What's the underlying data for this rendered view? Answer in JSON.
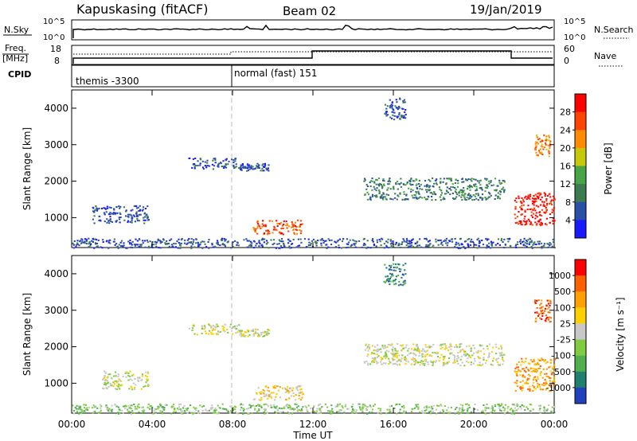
{
  "header": {
    "station": "Kapuskasing (fitACF)",
    "beam": "Beam 02",
    "date": "19/Jan/2019"
  },
  "noise_panel": {
    "left_label": "N.Sky",
    "left_ticks": [
      "10^5",
      "10^0"
    ],
    "right_label": "N.Search",
    "right_ticks": [
      "10^5",
      "10^0"
    ]
  },
  "freq_panel": {
    "left_label_1": "Freq.",
    "left_label_2": "[MHz]",
    "left_ticks": [
      "18",
      "8"
    ],
    "right_label": "Nave",
    "right_ticks": [
      "60",
      "0"
    ]
  },
  "cpid_panel": {
    "label": "CPID",
    "modes": [
      {
        "text": "themis -3300",
        "start_hour": 0
      },
      {
        "text": "normal (fast) 151",
        "start_hour": 8
      }
    ]
  },
  "x_axis": {
    "label": "Time UT",
    "ticks": [
      "00:00",
      "04:00",
      "08:00",
      "12:00",
      "16:00",
      "20:00",
      "00:00"
    ],
    "range_hours": [
      0,
      24
    ]
  },
  "chart_data": [
    {
      "type": "heatmap",
      "name": "power",
      "ylabel": "Slant Range [km]",
      "y_ticks": [
        "1000",
        "2000",
        "3000",
        "4000"
      ],
      "ylim": [
        180,
        4500
      ],
      "colorbar_label": "Power [dB]",
      "colorbar_ticks": [
        "4",
        "8",
        "12",
        "16",
        "20",
        "24",
        "28"
      ],
      "colors": [
        "#1a1aff",
        "#2a4fa8",
        "#3c7a50",
        "#47a447",
        "#c8c80a",
        "#ff8c00",
        "#ff4400",
        "#ff0000"
      ],
      "regions": [
        {
          "t0": 1.0,
          "t1": 3.8,
          "r0": 850,
          "r1": 1350,
          "level": 1
        },
        {
          "t0": 5.8,
          "t1": 8.3,
          "r0": 2350,
          "r1": 2650,
          "level": 1
        },
        {
          "t0": 8.3,
          "t1": 9.8,
          "r0": 2300,
          "r1": 2500,
          "level": 1
        },
        {
          "t0": 9.0,
          "t1": 11.5,
          "r0": 550,
          "r1": 950,
          "level": 6
        },
        {
          "t0": 14.5,
          "t1": 21.5,
          "r0": 1500,
          "r1": 2100,
          "level": 2
        },
        {
          "t0": 15.5,
          "t1": 16.6,
          "r0": 3700,
          "r1": 4300,
          "level": 1
        },
        {
          "t0": 22.0,
          "t1": 24.0,
          "r0": 800,
          "r1": 1700,
          "level": 7
        },
        {
          "t0": 23.0,
          "t1": 23.8,
          "r0": 2700,
          "r1": 3300,
          "level": 5
        },
        {
          "t0": 0.0,
          "t1": 24.0,
          "r0": 180,
          "r1": 450,
          "level": 1
        }
      ]
    },
    {
      "type": "heatmap",
      "name": "velocity",
      "ylabel": "Slant Range [km]",
      "y_ticks": [
        "1000",
        "2000",
        "3000",
        "4000"
      ],
      "ylim": [
        180,
        4500
      ],
      "colorbar_label": "Velocity [m s⁻¹]",
      "colorbar_ticks": [
        "1000",
        "500",
        "100",
        "25",
        "-25",
        "-100",
        "-500",
        "-1000"
      ],
      "colors": [
        "#2040c0",
        "#208070",
        "#50b050",
        "#80cc40",
        "#c8c8c8",
        "#ffd000",
        "#ffa000",
        "#ff6000",
        "#ff0000"
      ],
      "regions": [
        {
          "t0": 1.5,
          "t1": 3.8,
          "r0": 850,
          "r1": 1350,
          "level": 4
        },
        {
          "t0": 5.8,
          "t1": 8.3,
          "r0": 2350,
          "r1": 2650,
          "level": 4
        },
        {
          "t0": 8.3,
          "t1": 9.8,
          "r0": 2300,
          "r1": 2500,
          "level": 4
        },
        {
          "t0": 9.0,
          "t1": 11.5,
          "r0": 550,
          "r1": 950,
          "level": 5
        },
        {
          "t0": 14.5,
          "t1": 21.5,
          "r0": 1500,
          "r1": 2100,
          "level": 4
        },
        {
          "t0": 15.5,
          "t1": 16.6,
          "r0": 3700,
          "r1": 4300,
          "level": 1
        },
        {
          "t0": 22.0,
          "t1": 24.0,
          "r0": 800,
          "r1": 1700,
          "level": 6
        },
        {
          "t0": 23.0,
          "t1": 23.8,
          "r0": 2700,
          "r1": 3300,
          "level": 7
        },
        {
          "t0": 0.0,
          "t1": 24.0,
          "r0": 180,
          "r1": 450,
          "level": 3
        }
      ]
    }
  ]
}
